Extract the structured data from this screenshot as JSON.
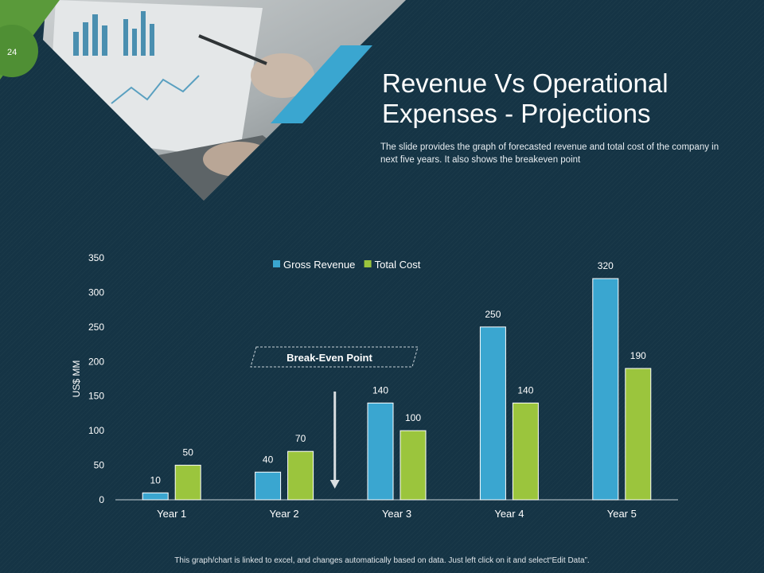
{
  "slide": {
    "number": "24",
    "title_line1": "Revenue Vs Operational",
    "title_line2": "Expenses - Projections",
    "subtitle": "The slide provides the graph of forecasted revenue and total cost of the company in next five years. It also shows the breakeven point",
    "footnote": "This graph/chart is linked to excel, and changes automatically based on data. Just left click on it and select“Edit Data”."
  },
  "colors": {
    "background": "#153445",
    "gross_revenue": "#3aa6d0",
    "total_cost": "#9bc53d",
    "accent_green": "#5a9a3a"
  },
  "chart_data": {
    "type": "bar",
    "categories": [
      "Year 1",
      "Year 2",
      "Year 3",
      "Year 4",
      "Year 5"
    ],
    "series": [
      {
        "name": "Gross Revenue",
        "values": [
          10,
          40,
          140,
          250,
          320
        ],
        "color": "#3aa6d0"
      },
      {
        "name": "Total Cost",
        "values": [
          50,
          70,
          100,
          140,
          190
        ],
        "color": "#9bc53d"
      }
    ],
    "ylabel": "US$ MM",
    "ylim": [
      0,
      350
    ],
    "yticks": [
      0,
      50,
      100,
      150,
      200,
      250,
      300,
      350
    ],
    "legend": "top-center",
    "grid": false,
    "annotation": {
      "text": "Break-Even Point",
      "category": "Year 3"
    }
  }
}
